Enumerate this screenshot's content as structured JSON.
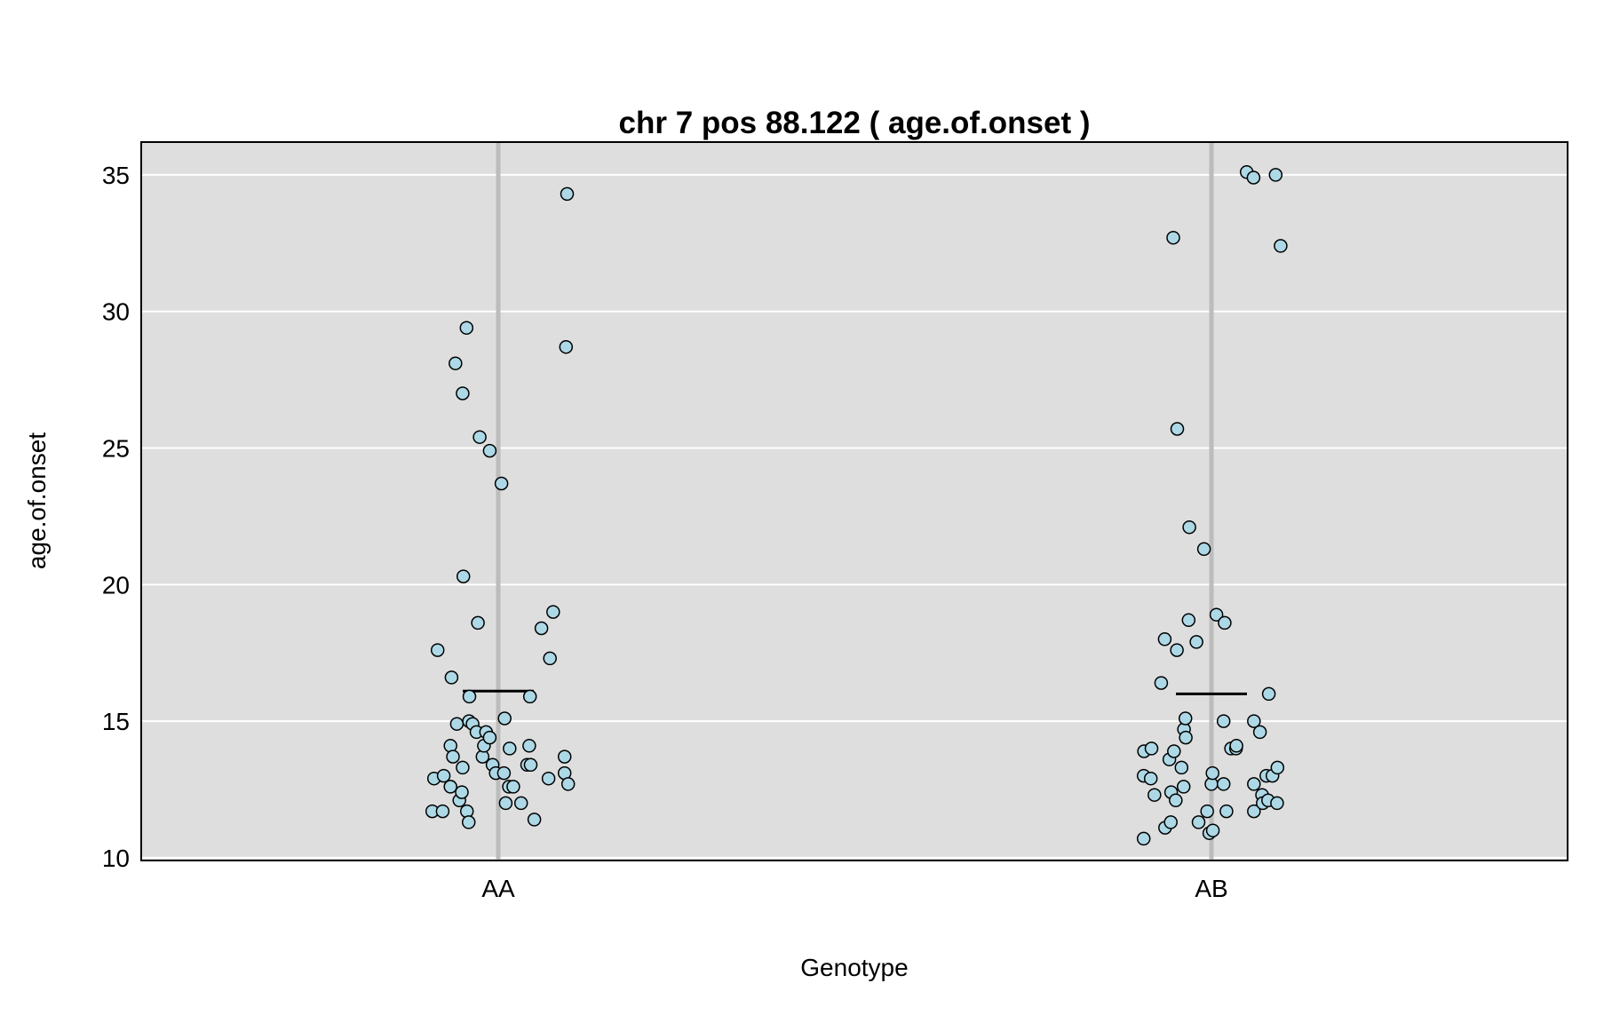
{
  "chart_data": {
    "type": "scatter",
    "title": "chr 7 pos 88.122 ( age.of.onset )",
    "xlabel": "Genotype",
    "ylabel": "age.of.onset",
    "categories": [
      "AA",
      "AB"
    ],
    "ylim": [
      9.9,
      36.2
    ],
    "yticks": [
      "10",
      "15",
      "20",
      "25",
      "30",
      "35"
    ],
    "grid": true,
    "colors": {
      "panel": "#dedede",
      "grid": "#ffffff",
      "category_line": "#bcbcbc",
      "point_fill": "#add8e6",
      "point_stroke": "#000000",
      "mean_line": "#000000"
    },
    "series": [
      {
        "category": "AA",
        "mean": 16.1,
        "points": [
          {
            "x": -0.185,
            "y": 11.7
          },
          {
            "x": -0.18,
            "y": 12.9
          },
          {
            "x": -0.17,
            "y": 17.6
          },
          {
            "x": -0.156,
            "y": 11.7
          },
          {
            "x": -0.153,
            "y": 13.0
          },
          {
            "x": -0.134,
            "y": 12.6
          },
          {
            "x": -0.134,
            "y": 14.1
          },
          {
            "x": -0.131,
            "y": 16.6
          },
          {
            "x": -0.127,
            "y": 13.7
          },
          {
            "x": -0.12,
            "y": 28.1
          },
          {
            "x": -0.116,
            "y": 14.9
          },
          {
            "x": -0.109,
            "y": 12.1
          },
          {
            "x": -0.102,
            "y": 12.4
          },
          {
            "x": -0.1,
            "y": 27.0
          },
          {
            "x": -0.1,
            "y": 13.3
          },
          {
            "x": -0.098,
            "y": 20.3
          },
          {
            "x": -0.089,
            "y": 29.4
          },
          {
            "x": -0.088,
            "y": 11.7
          },
          {
            "x": -0.083,
            "y": 11.3
          },
          {
            "x": -0.082,
            "y": 15.0
          },
          {
            "x": -0.081,
            "y": 15.9
          },
          {
            "x": -0.072,
            "y": 14.9
          },
          {
            "x": -0.061,
            "y": 14.6
          },
          {
            "x": -0.057,
            "y": 18.6
          },
          {
            "x": -0.052,
            "y": 25.4
          },
          {
            "x": -0.044,
            "y": 13.7
          },
          {
            "x": -0.04,
            "y": 14.1
          },
          {
            "x": -0.034,
            "y": 14.6
          },
          {
            "x": -0.024,
            "y": 24.9
          },
          {
            "x": -0.024,
            "y": 14.4
          },
          {
            "x": -0.016,
            "y": 13.4
          },
          {
            "x": -0.007,
            "y": 13.1
          },
          {
            "x": 0.009,
            "y": 23.7
          },
          {
            "x": 0.016,
            "y": 13.1
          },
          {
            "x": 0.018,
            "y": 15.1
          },
          {
            "x": 0.021,
            "y": 12.0
          },
          {
            "x": 0.03,
            "y": 12.6
          },
          {
            "x": 0.032,
            "y": 14.0
          },
          {
            "x": 0.042,
            "y": 12.6
          },
          {
            "x": 0.064,
            "y": 12.0
          },
          {
            "x": 0.081,
            "y": 13.4
          },
          {
            "x": 0.087,
            "y": 14.1
          },
          {
            "x": 0.089,
            "y": 15.9
          },
          {
            "x": 0.091,
            "y": 13.4
          },
          {
            "x": 0.101,
            "y": 11.4
          },
          {
            "x": 0.121,
            "y": 18.4
          },
          {
            "x": 0.141,
            "y": 12.9
          },
          {
            "x": 0.145,
            "y": 17.3
          },
          {
            "x": 0.154,
            "y": 19.0
          },
          {
            "x": 0.186,
            "y": 13.7
          },
          {
            "x": 0.186,
            "y": 13.1
          },
          {
            "x": 0.19,
            "y": 28.7
          },
          {
            "x": 0.193,
            "y": 34.3
          },
          {
            "x": 0.196,
            "y": 12.7
          }
        ]
      },
      {
        "category": "AB",
        "mean": 16.0,
        "points": [
          {
            "x": -0.19,
            "y": 10.7
          },
          {
            "x": -0.19,
            "y": 13.0
          },
          {
            "x": -0.189,
            "y": 13.9
          },
          {
            "x": -0.17,
            "y": 12.9
          },
          {
            "x": -0.168,
            "y": 14.0
          },
          {
            "x": -0.16,
            "y": 12.3
          },
          {
            "x": -0.141,
            "y": 16.4
          },
          {
            "x": -0.131,
            "y": 18.0
          },
          {
            "x": -0.13,
            "y": 11.1
          },
          {
            "x": -0.118,
            "y": 13.6
          },
          {
            "x": -0.114,
            "y": 11.3
          },
          {
            "x": -0.113,
            "y": 12.4
          },
          {
            "x": -0.107,
            "y": 32.7
          },
          {
            "x": -0.105,
            "y": 13.9
          },
          {
            "x": -0.1,
            "y": 12.1
          },
          {
            "x": -0.097,
            "y": 17.6
          },
          {
            "x": -0.096,
            "y": 25.7
          },
          {
            "x": -0.084,
            "y": 13.3
          },
          {
            "x": -0.078,
            "y": 12.6
          },
          {
            "x": -0.077,
            "y": 14.7
          },
          {
            "x": -0.073,
            "y": 15.1
          },
          {
            "x": -0.072,
            "y": 14.4
          },
          {
            "x": -0.064,
            "y": 18.7
          },
          {
            "x": -0.062,
            "y": 22.1
          },
          {
            "x": -0.042,
            "y": 17.9
          },
          {
            "x": -0.036,
            "y": 11.3
          },
          {
            "x": -0.021,
            "y": 21.3
          },
          {
            "x": -0.012,
            "y": 11.7
          },
          {
            "x": -0.006,
            "y": 10.9
          },
          {
            "x": 0.0,
            "y": 12.7
          },
          {
            "x": 0.003,
            "y": 13.1
          },
          {
            "x": 0.004,
            "y": 11.0
          },
          {
            "x": 0.014,
            "y": 18.9
          },
          {
            "x": 0.034,
            "y": 12.7
          },
          {
            "x": 0.034,
            "y": 15.0
          },
          {
            "x": 0.037,
            "y": 18.6
          },
          {
            "x": 0.042,
            "y": 11.7
          },
          {
            "x": 0.055,
            "y": 14.0
          },
          {
            "x": 0.069,
            "y": 14.0
          },
          {
            "x": 0.07,
            "y": 14.1
          },
          {
            "x": 0.099,
            "y": 35.1
          },
          {
            "x": 0.118,
            "y": 34.9
          },
          {
            "x": 0.119,
            "y": 15.0
          },
          {
            "x": 0.119,
            "y": 11.7
          },
          {
            "x": 0.119,
            "y": 12.7
          },
          {
            "x": 0.136,
            "y": 14.6
          },
          {
            "x": 0.142,
            "y": 12.3
          },
          {
            "x": 0.144,
            "y": 12.0
          },
          {
            "x": 0.154,
            "y": 13.0
          },
          {
            "x": 0.159,
            "y": 12.1
          },
          {
            "x": 0.161,
            "y": 16.0
          },
          {
            "x": 0.171,
            "y": 13.0
          },
          {
            "x": 0.18,
            "y": 35.0
          },
          {
            "x": 0.184,
            "y": 12.0
          },
          {
            "x": 0.185,
            "y": 13.3
          },
          {
            "x": 0.194,
            "y": 32.4
          }
        ]
      }
    ]
  }
}
